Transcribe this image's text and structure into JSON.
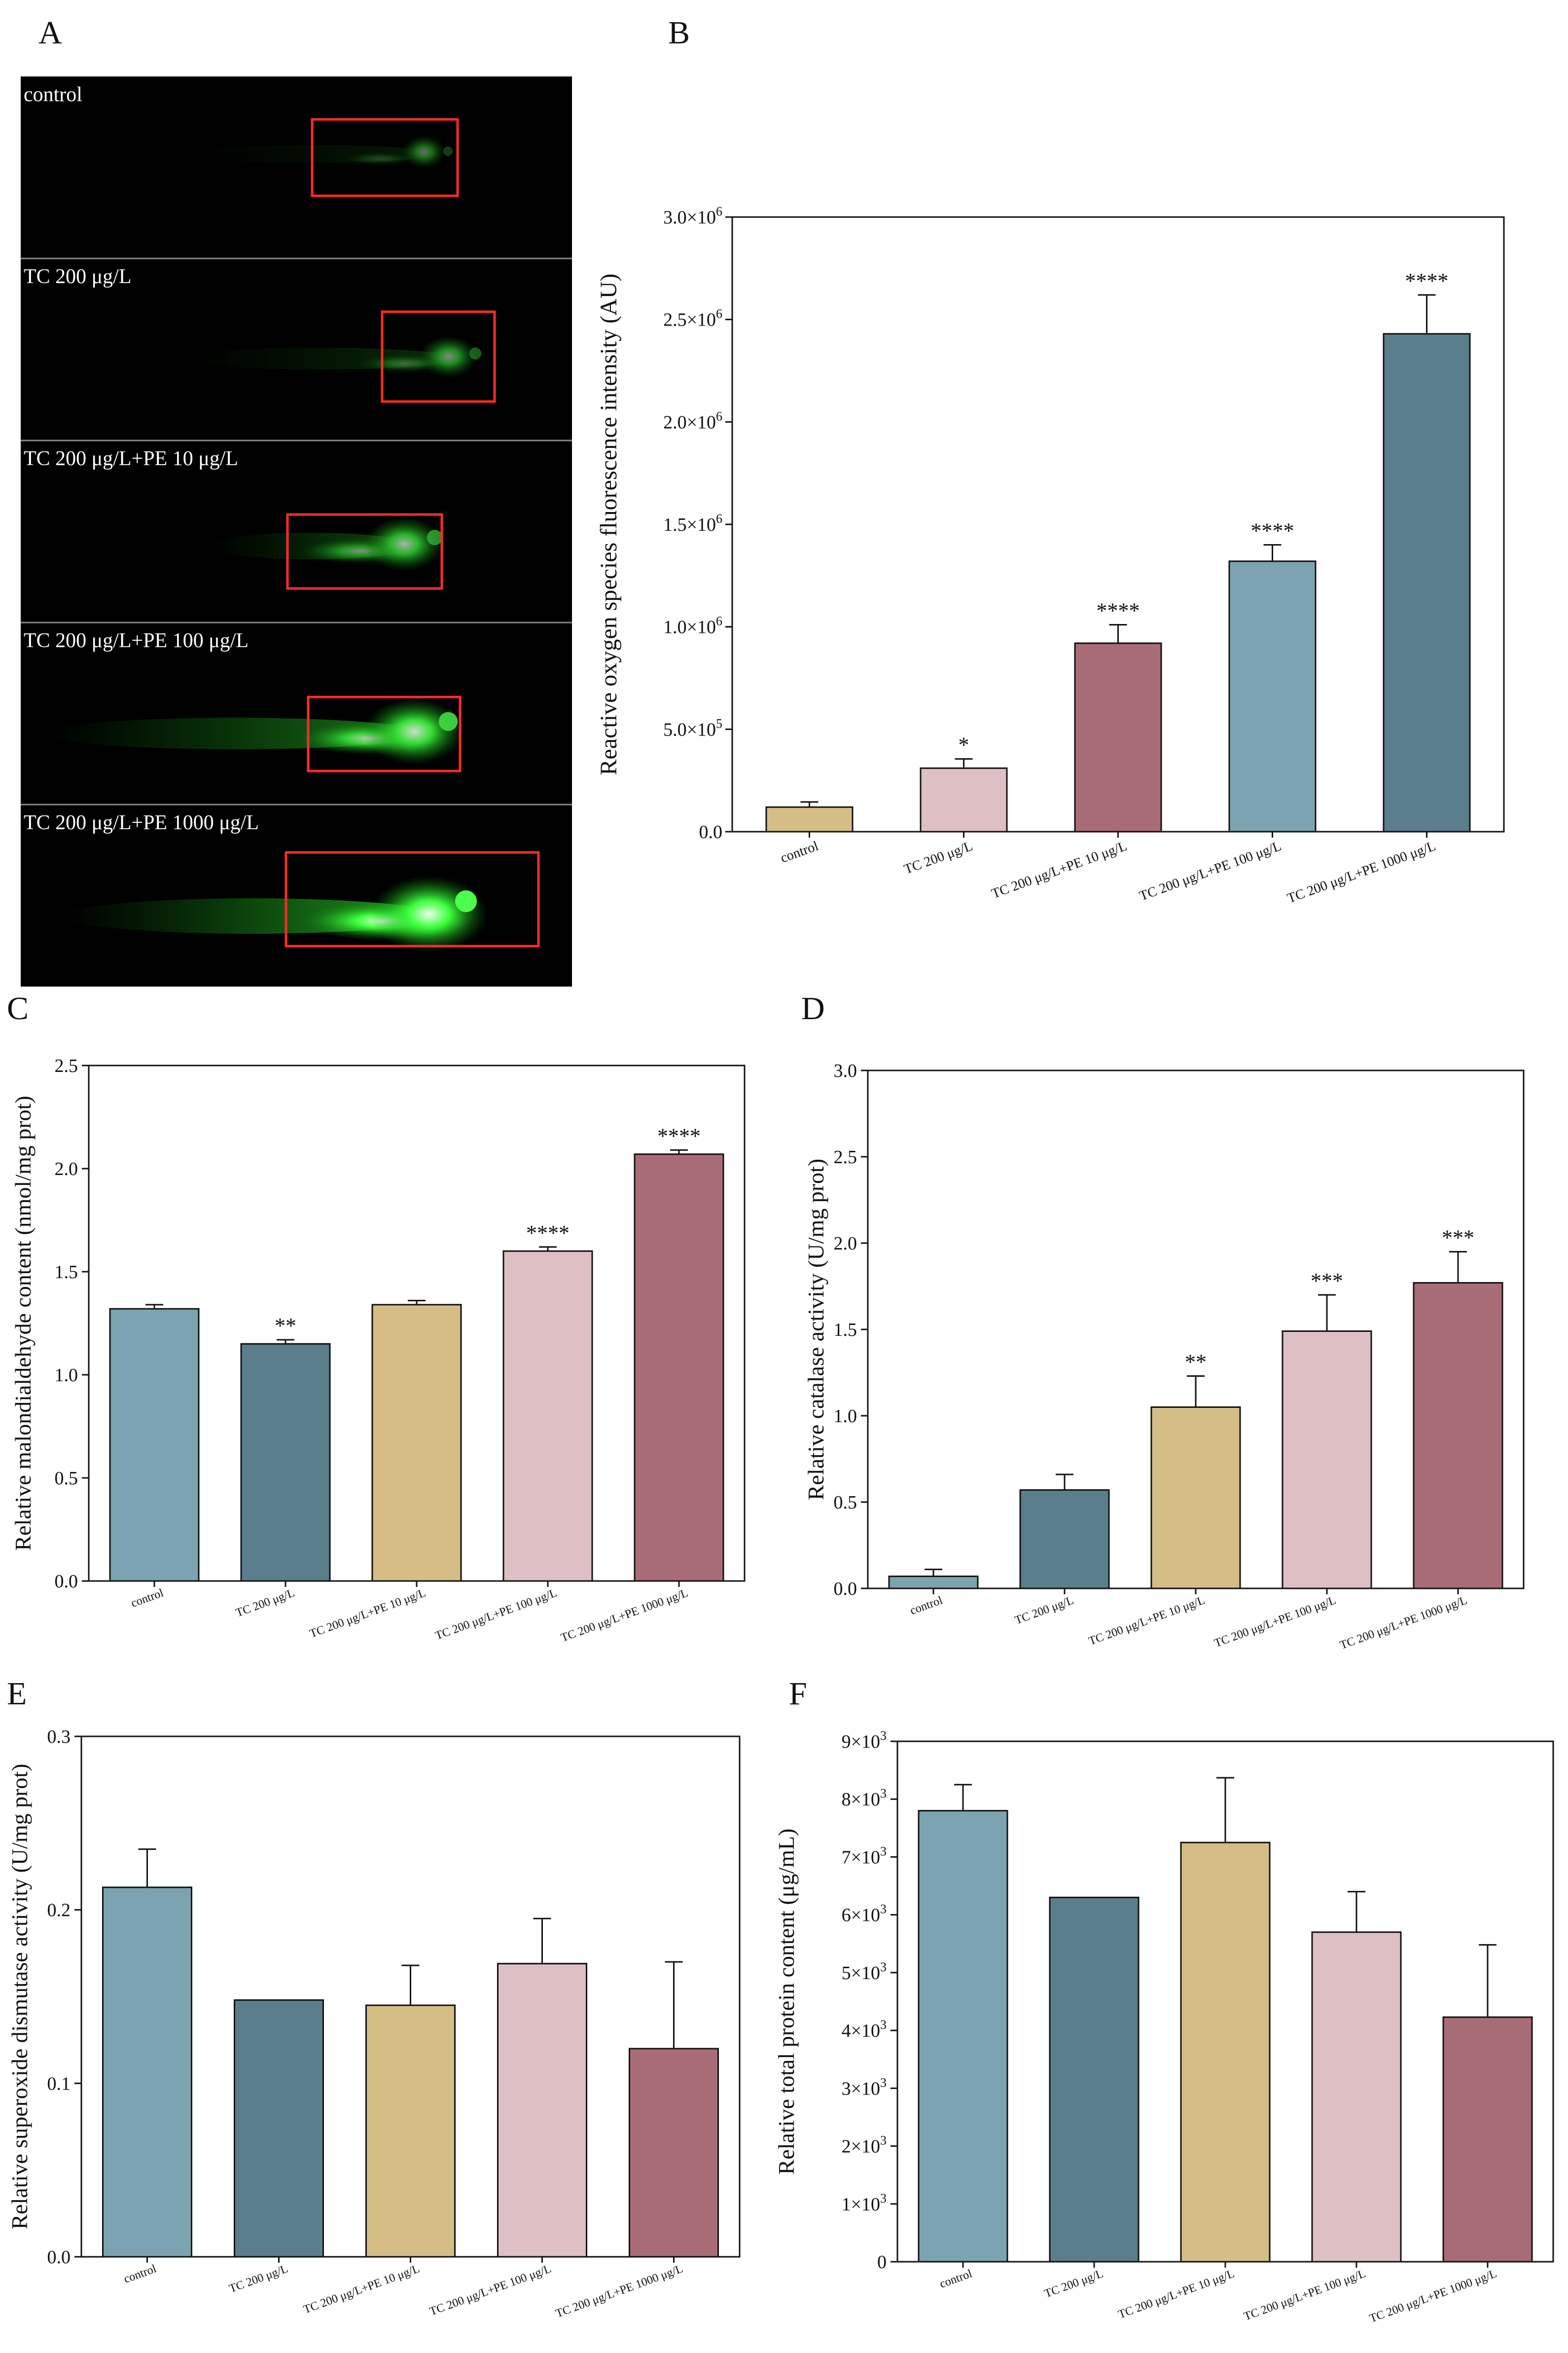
{
  "panel_letters": {
    "A": "A",
    "B": "B",
    "C": "C",
    "D": "D",
    "E": "E",
    "F": "F"
  },
  "colors": {
    "tan": "#d6bd85",
    "pink": "#ddbfc4",
    "wine": "#a86c77",
    "lightblue": "#7ca3b1",
    "steelblue": "#5b7e8d",
    "fluorescence": "#39ff39",
    "highlight_box": "#ff2a2a"
  },
  "fluorescence_images": {
    "panels": [
      {
        "label": "control",
        "intensity": 0.12
      },
      {
        "label": "TC 200 μg/L",
        "intensity": 0.3
      },
      {
        "label": "TC 200 μg/L+PE 10 μg/L",
        "intensity": 0.55
      },
      {
        "label": "TC 200 μg/L+PE 100 μg/L",
        "intensity": 0.8
      },
      {
        "label": "TC 200 μg/L+PE 1000 μg/L",
        "intensity": 1.0
      }
    ]
  },
  "chart_data": [
    {
      "panel": "B",
      "type": "bar",
      "ylabel": "Reactive oxygen species fluorescence intensity (AU)",
      "categories": [
        "control",
        "TC 200 μg/L",
        "TC 200 μg/L+PE 10 μg/L",
        "TC 200 μg/L+PE 100 μg/L",
        "TC 200 μg/L+PE 1000 μg/L"
      ],
      "values": [
        120000,
        310000,
        920000,
        1320000,
        2430000
      ],
      "errors": [
        25000,
        45000,
        90000,
        80000,
        190000
      ],
      "significance": [
        "",
        "*",
        "****",
        "****",
        "****"
      ],
      "colors": [
        "#d6bd85",
        "#ddbfc4",
        "#a86c77",
        "#7ca3b1",
        "#5b7e8d"
      ],
      "ylim": [
        0,
        3000000
      ],
      "yticks": [
        {
          "value": 0,
          "base": "0.0",
          "exp": ""
        },
        {
          "value": 500000,
          "base": "5.0×10",
          "exp": "5"
        },
        {
          "value": 1000000,
          "base": "1.0×10",
          "exp": "6"
        },
        {
          "value": 1500000,
          "base": "1.5×10",
          "exp": "6"
        },
        {
          "value": 2000000,
          "base": "2.0×10",
          "exp": "6"
        },
        {
          "value": 2500000,
          "base": "2.5×10",
          "exp": "6"
        },
        {
          "value": 3000000,
          "base": "3.0×10",
          "exp": "6"
        }
      ]
    },
    {
      "panel": "C",
      "type": "bar",
      "ylabel": "Relative malondialdehyde content (nmol/mg prot)",
      "categories": [
        "control",
        "TC 200 μg/L",
        "TC 200 μg/L+PE 10 μg/L",
        "TC 200 μg/L+PE 100 μg/L",
        "TC 200 μg/L+PE 1000 μg/L"
      ],
      "values": [
        1.32,
        1.15,
        1.34,
        1.6,
        2.07
      ],
      "errors": [
        0.02,
        0.02,
        0.02,
        0.02,
        0.02
      ],
      "significance": [
        "",
        "**",
        "",
        "****",
        "****"
      ],
      "colors": [
        "#7ca3b1",
        "#5b7e8d",
        "#d6bd85",
        "#ddbfc4",
        "#a86c77"
      ],
      "ylim": [
        0,
        2.5
      ],
      "yticks": [
        {
          "value": 0,
          "base": "0.0",
          "exp": ""
        },
        {
          "value": 0.5,
          "base": "0.5",
          "exp": ""
        },
        {
          "value": 1.0,
          "base": "1.0",
          "exp": ""
        },
        {
          "value": 1.5,
          "base": "1.5",
          "exp": ""
        },
        {
          "value": 2.0,
          "base": "2.0",
          "exp": ""
        },
        {
          "value": 2.5,
          "base": "2.5",
          "exp": ""
        }
      ]
    },
    {
      "panel": "D",
      "type": "bar",
      "ylabel": "Relative catalase activity (U/mg prot)",
      "categories": [
        "control",
        "TC 200 μg/L",
        "TC 200 μg/L+PE 10 μg/L",
        "TC 200 μg/L+PE 100 μg/L",
        "TC 200 μg/L+PE 1000 μg/L"
      ],
      "values": [
        0.07,
        0.57,
        1.05,
        1.49,
        1.77
      ],
      "errors": [
        0.04,
        0.09,
        0.18,
        0.21,
        0.18
      ],
      "significance": [
        "",
        "",
        "**",
        "***",
        "***"
      ],
      "colors": [
        "#7ca3b1",
        "#5b7e8d",
        "#d6bd85",
        "#ddbfc4",
        "#a86c77"
      ],
      "ylim": [
        0,
        3.0
      ],
      "yticks": [
        {
          "value": 0,
          "base": "0.0",
          "exp": ""
        },
        {
          "value": 0.5,
          "base": "0.5",
          "exp": ""
        },
        {
          "value": 1.0,
          "base": "1.0",
          "exp": ""
        },
        {
          "value": 1.5,
          "base": "1.5",
          "exp": ""
        },
        {
          "value": 2.0,
          "base": "2.0",
          "exp": ""
        },
        {
          "value": 2.5,
          "base": "2.5",
          "exp": ""
        },
        {
          "value": 3.0,
          "base": "3.0",
          "exp": ""
        }
      ]
    },
    {
      "panel": "E",
      "type": "bar",
      "ylabel": "Relative superoxide dismutase activity (U/mg prot)",
      "categories": [
        "control",
        "TC 200 μg/L",
        "TC 200 μg/L+PE 10 μg/L",
        "TC 200 μg/L+PE 100 μg/L",
        "TC 200 μg/L+PE 1000 μg/L"
      ],
      "values": [
        0.213,
        0.148,
        0.145,
        0.169,
        0.12
      ],
      "errors": [
        0.022,
        0.0,
        0.023,
        0.026,
        0.05
      ],
      "significance": [
        "",
        "",
        "",
        "",
        ""
      ],
      "colors": [
        "#7ca3b1",
        "#5b7e8d",
        "#d6bd85",
        "#ddbfc4",
        "#a86c77"
      ],
      "ylim": [
        0,
        0.3
      ],
      "yticks": [
        {
          "value": 0,
          "base": "0.0",
          "exp": ""
        },
        {
          "value": 0.1,
          "base": "0.1",
          "exp": ""
        },
        {
          "value": 0.2,
          "base": "0.2",
          "exp": ""
        },
        {
          "value": 0.3,
          "base": "0.3",
          "exp": ""
        }
      ]
    },
    {
      "panel": "F",
      "type": "bar",
      "ylabel": "Relative total protein content (μg/mL)",
      "categories": [
        "control",
        "TC 200 μg/L",
        "TC 200 μg/L+PE 10 μg/L",
        "TC 200 μg/L+PE 100 μg/L",
        "TC 200 μg/L+PE 1000 μg/L"
      ],
      "values": [
        7800,
        6300,
        7250,
        5700,
        4230
      ],
      "errors": [
        450,
        0,
        1120,
        700,
        1250
      ],
      "significance": [
        "",
        "",
        "",
        "",
        ""
      ],
      "colors": [
        "#7ca3b1",
        "#5b7e8d",
        "#d6bd85",
        "#ddbfc4",
        "#a86c77"
      ],
      "ylim": [
        0,
        9000
      ],
      "yticks": [
        {
          "value": 0,
          "base": "0",
          "exp": ""
        },
        {
          "value": 1000,
          "base": "1×10",
          "exp": "3"
        },
        {
          "value": 2000,
          "base": "2×10",
          "exp": "3"
        },
        {
          "value": 3000,
          "base": "3×10",
          "exp": "3"
        },
        {
          "value": 4000,
          "base": "4×10",
          "exp": "3"
        },
        {
          "value": 5000,
          "base": "5×10",
          "exp": "3"
        },
        {
          "value": 6000,
          "base": "6×10",
          "exp": "3"
        },
        {
          "value": 7000,
          "base": "7×10",
          "exp": "3"
        },
        {
          "value": 8000,
          "base": "8×10",
          "exp": "3"
        },
        {
          "value": 9000,
          "base": "9×10",
          "exp": "3"
        }
      ]
    }
  ]
}
